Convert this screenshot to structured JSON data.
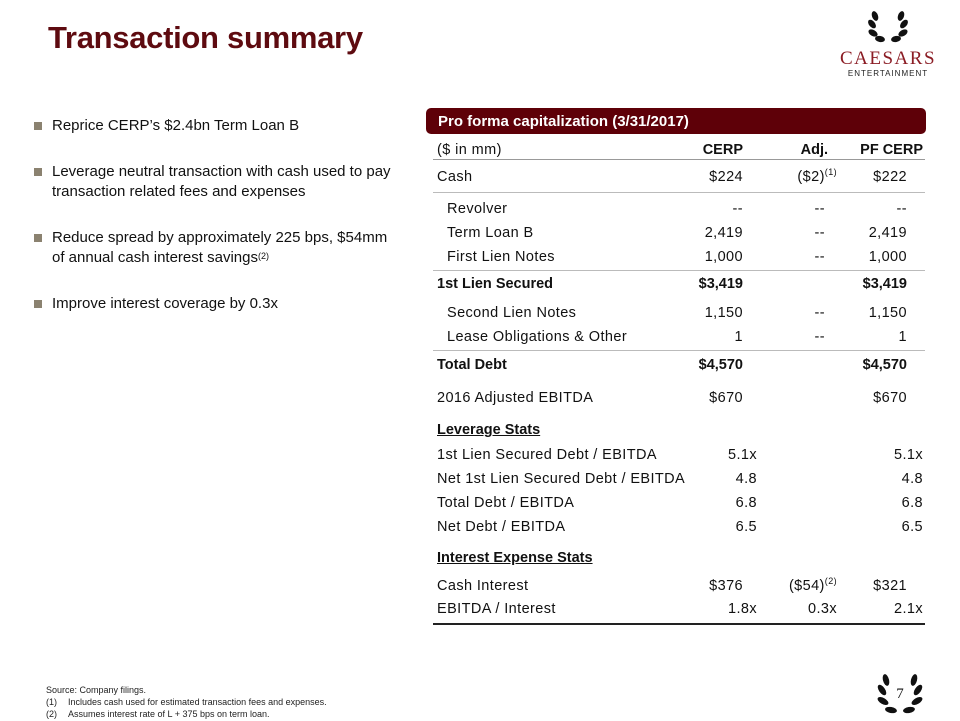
{
  "title": "Transaction summary",
  "logo": {
    "name": "CAESARS",
    "sub": "ENTERTAINMENT"
  },
  "bullets": [
    {
      "text": "Reprice CERP’s $2.4bn Term Loan B",
      "sup": ""
    },
    {
      "text": "Leverage neutral transaction with cash used to pay transaction related fees and expenses",
      "sup": ""
    },
    {
      "text": "Reduce spread by approximately 225 bps, $54mm of annual cash interest savings",
      "sup": "(2)"
    },
    {
      "text": "Improve interest coverage by 0.3x",
      "sup": ""
    }
  ],
  "table": {
    "title": "Pro forma capitalization (3/31/2017)",
    "header": {
      "label": "($ in mm)",
      "c1": "CERP",
      "c2": "Adj.",
      "c3": "PF CERP"
    },
    "rows": [
      {
        "label": "Cash",
        "c1": "$224",
        "c2": "($2)",
        "c2sup": "(1)",
        "c3": "$222"
      },
      {
        "label": "Revolver",
        "c1": "--",
        "c2": "--",
        "c3": "--"
      },
      {
        "label": "Term Loan B",
        "c1": "2,419",
        "c2": "--",
        "c3": "2,419"
      },
      {
        "label": "First Lien Notes",
        "c1": "1,000",
        "c2": "--",
        "c3": "1,000"
      },
      {
        "label": "1st Lien Secured",
        "c1": "$3,419",
        "c2": "",
        "c3": "$3,419"
      },
      {
        "label": "Second Lien Notes",
        "c1": "1,150",
        "c2": "--",
        "c3": "1,150"
      },
      {
        "label": "Lease Obligations & Other",
        "c1": "1",
        "c2": "--",
        "c3": "1"
      },
      {
        "label": "Total Debt",
        "c1": "$4,570",
        "c2": "",
        "c3": "$4,570"
      },
      {
        "label": "2016 Adjusted EBITDA",
        "c1": "$670",
        "c2": "",
        "c3": "$670"
      },
      {
        "label": "Leverage Stats"
      },
      {
        "label": "1st Lien Secured Debt / EBITDA",
        "c1": "5.1x",
        "c3": "5.1x"
      },
      {
        "label": "Net 1st Lien Secured Debt / EBITDA",
        "c1": "4.8",
        "c3": "4.8"
      },
      {
        "label": "Total Debt / EBITDA",
        "c1": "6.8",
        "c3": "6.8"
      },
      {
        "label": "Net Debt / EBITDA",
        "c1": "6.5",
        "c3": "6.5"
      },
      {
        "label": "Interest Expense Stats"
      },
      {
        "label": "Cash Interest",
        "c1": "$376",
        "c2": "($54)",
        "c2sup": "(2)",
        "c3": "$321"
      },
      {
        "label": "EBITDA / Interest",
        "c1": "1.8x",
        "c2": "0.3x",
        "c3": "2.1x"
      }
    ]
  },
  "footnotes": {
    "source": "Source: Company filings.",
    "notes": [
      {
        "n": "(1)",
        "t": "Includes cash used for estimated transaction fees and expenses."
      },
      {
        "n": "(2)",
        "t": "Assumes interest rate of L + 375 bps on term loan."
      }
    ]
  },
  "page_number": "7",
  "colors": {
    "title": "#5e0b10",
    "bar": "#5e0008",
    "bullet": "#8b8270"
  }
}
